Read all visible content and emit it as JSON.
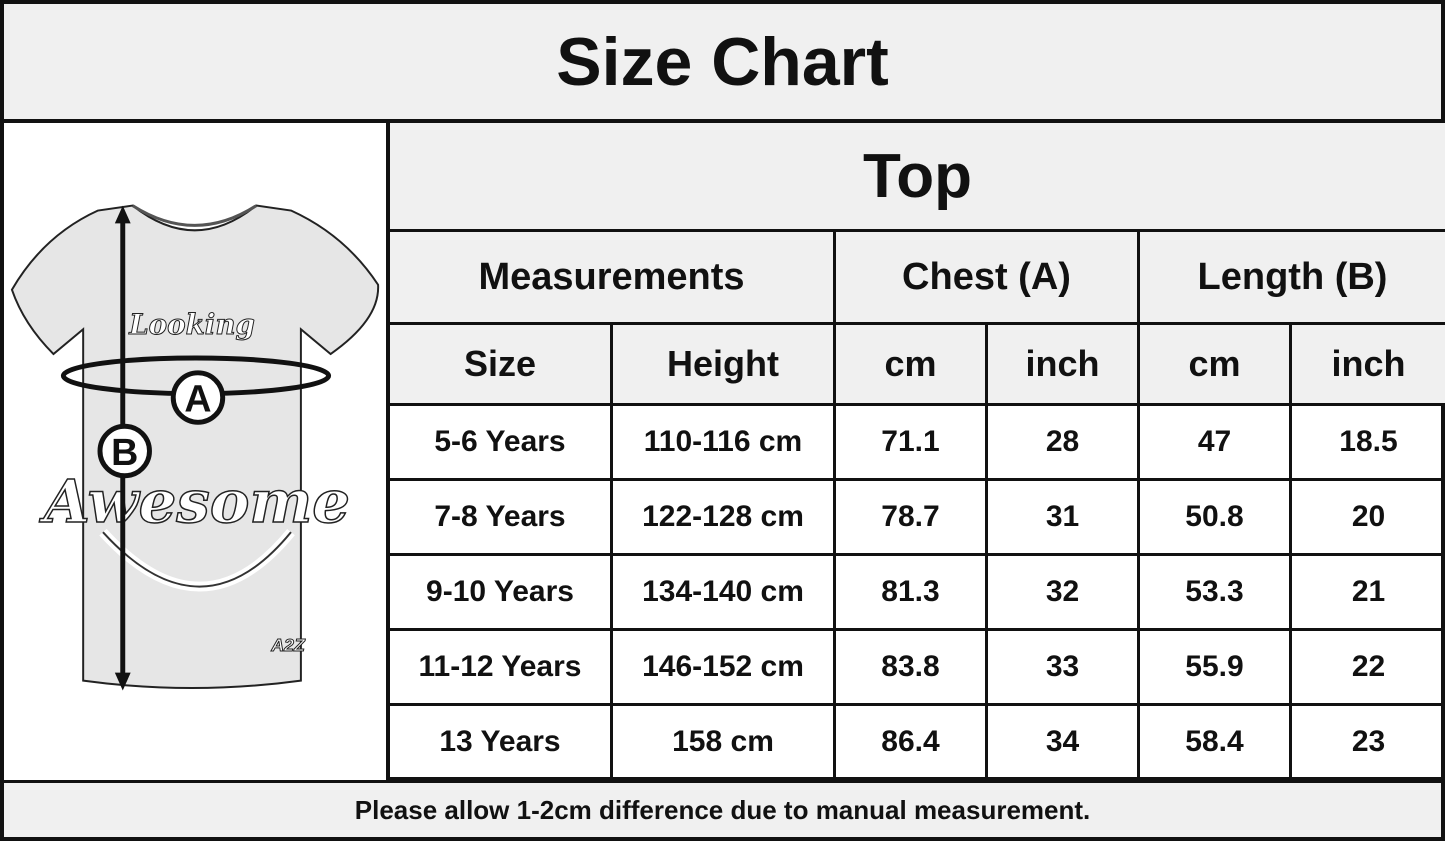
{
  "title": "Size Chart",
  "illustration": {
    "marker_a": "A",
    "marker_b": "B",
    "shirt_text_1": "Looking",
    "shirt_text_2": "Awesome",
    "brand": "A2Z"
  },
  "table": {
    "section_title": "Top",
    "group_headers": [
      "Measurements",
      "Chest (A)",
      "Length (B)"
    ],
    "sub_headers": [
      "Size",
      "Height",
      "cm",
      "inch",
      "cm",
      "inch"
    ],
    "rows": [
      [
        "5-6 Years",
        "110-116 cm",
        "71.1",
        "28",
        "47",
        "18.5"
      ],
      [
        "7-8 Years",
        "122-128 cm",
        "78.7",
        "31",
        "50.8",
        "20"
      ],
      [
        "9-10 Years",
        "134-140 cm",
        "81.3",
        "32",
        "53.3",
        "21"
      ],
      [
        "11-12 Years",
        "146-152 cm",
        "83.8",
        "33",
        "55.9",
        "22"
      ],
      [
        "13 Years",
        "158 cm",
        "86.4",
        "34",
        "58.4",
        "23"
      ]
    ]
  },
  "footer": "Please allow 1-2cm difference due to manual measurement.",
  "colors": {
    "header_bg": "#f0f0f0",
    "border": "#111111",
    "cell_bg": "#ffffff"
  }
}
